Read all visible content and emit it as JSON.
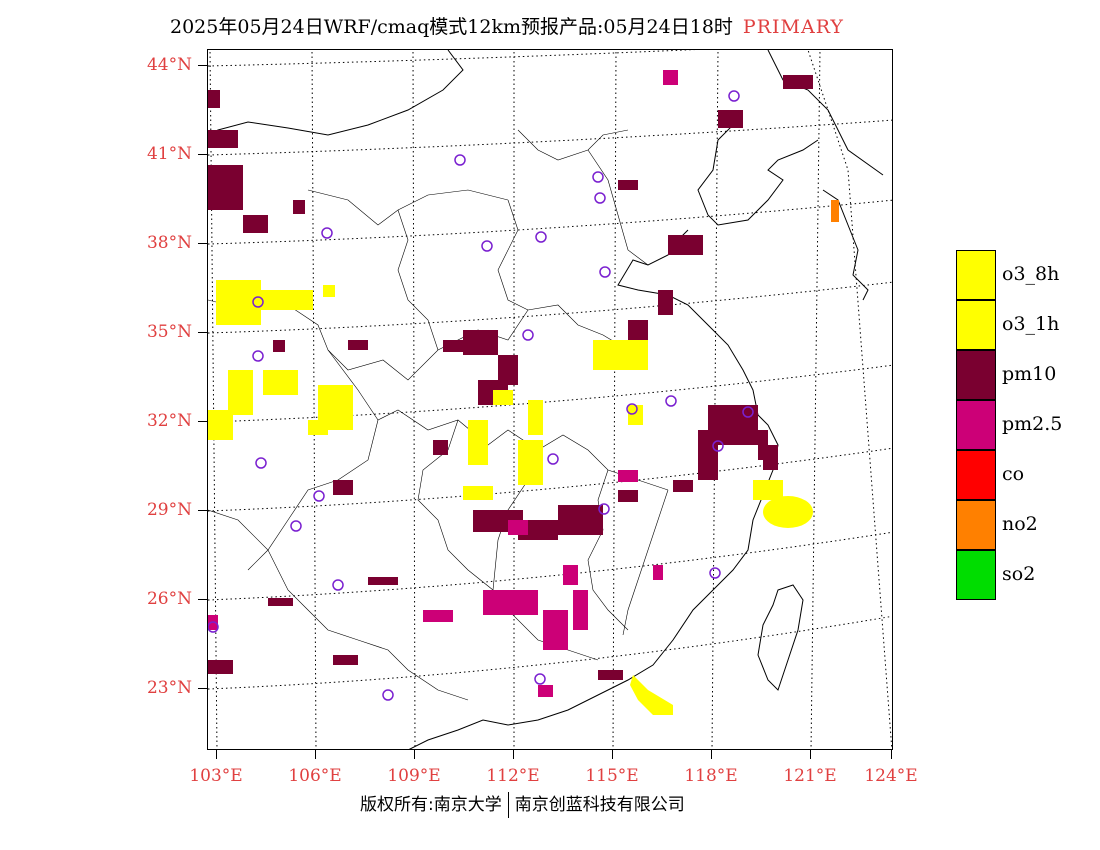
{
  "title": {
    "main": "2025年05月24日WRF/cmaq模式12km预报产品:05月24日18时",
    "tag": "PRIMARY"
  },
  "lat_labels": [
    "44°N",
    "41°N",
    "38°N",
    "35°N",
    "32°N",
    "29°N",
    "26°N",
    "23°N"
  ],
  "lon_labels": [
    "103°E",
    "106°E",
    "109°E",
    "112°E",
    "115°E",
    "118°E",
    "121°E",
    "124°E"
  ],
  "legend": [
    {
      "label": "o3_8h",
      "color": "#ffff00"
    },
    {
      "label": "o3_1h",
      "color": "#ffff00"
    },
    {
      "label": "pm10",
      "color": "#7a0030"
    },
    {
      "label": "pm2.5",
      "color": "#cc0077"
    },
    {
      "label": "co",
      "color": "#ff0000"
    },
    {
      "label": "no2",
      "color": "#ff8000"
    },
    {
      "label": "so2",
      "color": "#00dd00"
    }
  ],
  "footer": {
    "left": "版权所有:南京大学",
    "right": "南京创蓝科技有限公司"
  },
  "colors": {
    "axis_label": "#e04040",
    "station_marker": "#7a20d0"
  }
}
